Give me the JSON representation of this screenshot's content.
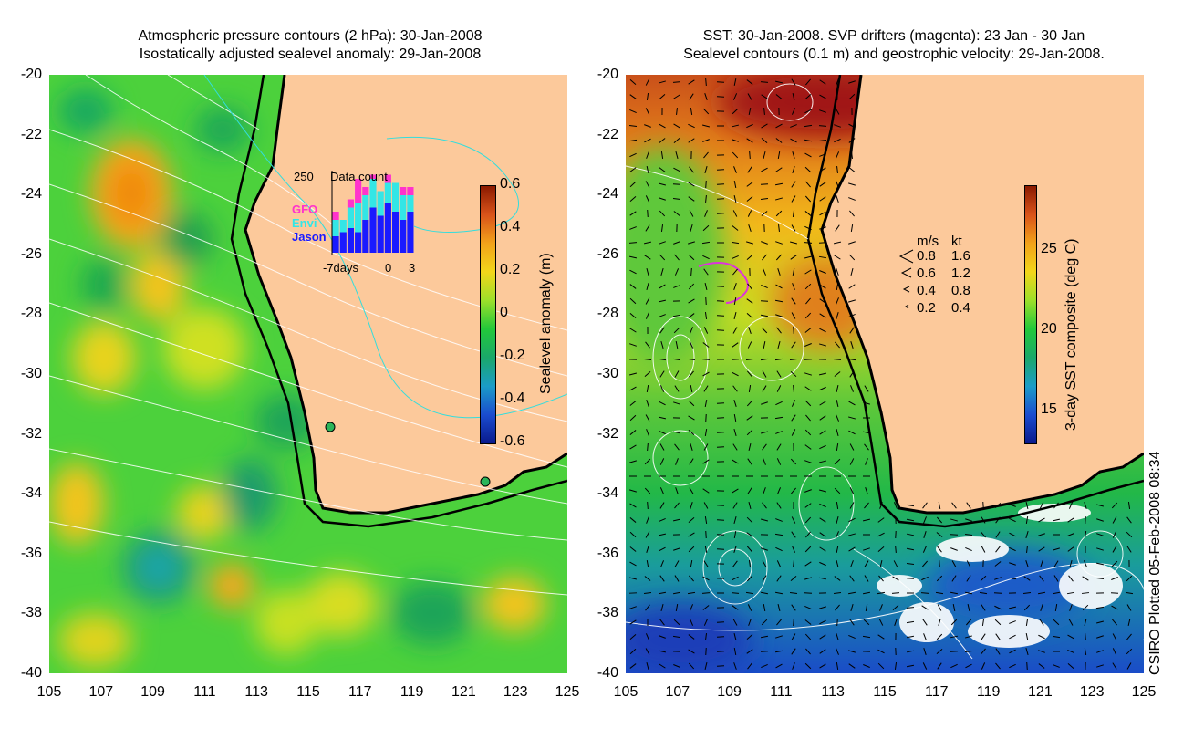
{
  "left": {
    "title_line1": "Atmospheric pressure contours (2 hPa): 30-Jan-2008",
    "title_line2": "Isostatically adjusted sealevel anomaly: 29-Jan-2008",
    "colorbar_label": "Sealevel anomaly (m)",
    "colorbar_ticks": [
      "0.6",
      "0.4",
      "0.2",
      "0",
      "-0.2",
      "-0.4",
      "-0.6"
    ],
    "colorbar_range": [
      -0.6,
      0.6
    ],
    "inset": {
      "title": "Data count",
      "ymax_label": "250",
      "legend": [
        {
          "label": "GFO",
          "color": "#ff33cc"
        },
        {
          "label": "Envi",
          "color": "#33e6e6"
        },
        {
          "label": "Jason",
          "color": "#1a1aff"
        }
      ],
      "x_labels": [
        "-7days",
        "0",
        "3"
      ],
      "bars_jason": [
        0.2,
        0.25,
        0.3,
        0.25,
        0.4,
        0.55,
        0.45,
        0.6,
        0.5,
        0.4,
        0.5
      ],
      "bars_envi": [
        0.2,
        0.15,
        0.25,
        0.35,
        0.3,
        0.35,
        0.3,
        0.25,
        0.35,
        0.3,
        0.2
      ],
      "bars_gfo": [
        0.1,
        0.0,
        0.1,
        0.3,
        0.1,
        0.05,
        0.0,
        0.1,
        0.0,
        0.1,
        0.1
      ]
    }
  },
  "right": {
    "title_line1": "SST: 30-Jan-2008. SVP drifters (magenta): 23 Jan - 30 Jan",
    "title_line2": "Sealevel contours (0.1 m) and geostrophic velocity: 29-Jan-2008.",
    "colorbar_label": "3-day SST composite (deg C)",
    "colorbar_ticks": [
      "25",
      "20",
      "15"
    ],
    "colorbar_range": [
      13,
      29
    ],
    "velocity_legend": {
      "header_ms": "m/s",
      "header_kt": "kt",
      "rows": [
        {
          "ms": "0.8",
          "kt": "1.6"
        },
        {
          "ms": "0.6",
          "kt": "1.2"
        },
        {
          "ms": "0.4",
          "kt": "0.8"
        },
        {
          "ms": "0.2",
          "kt": "0.4"
        }
      ]
    }
  },
  "axes": {
    "y_ticks": [
      "-20",
      "-22",
      "-24",
      "-26",
      "-28",
      "-30",
      "-32",
      "-34",
      "-36",
      "-38",
      "-40"
    ],
    "x_ticks": [
      "105",
      "107",
      "109",
      "111",
      "113",
      "115",
      "117",
      "119",
      "121",
      "123",
      "125"
    ]
  },
  "credit": "CSIRO Plotted 05-Feb-2008 08:34",
  "colors": {
    "land": "#fcc99b",
    "ocean_anomaly_base": "#3cc63c",
    "ocean_sst_base": "#2cb84a",
    "contour": "#ffffff",
    "coast": "#000000",
    "cyan_contour": "#33dddd"
  }
}
